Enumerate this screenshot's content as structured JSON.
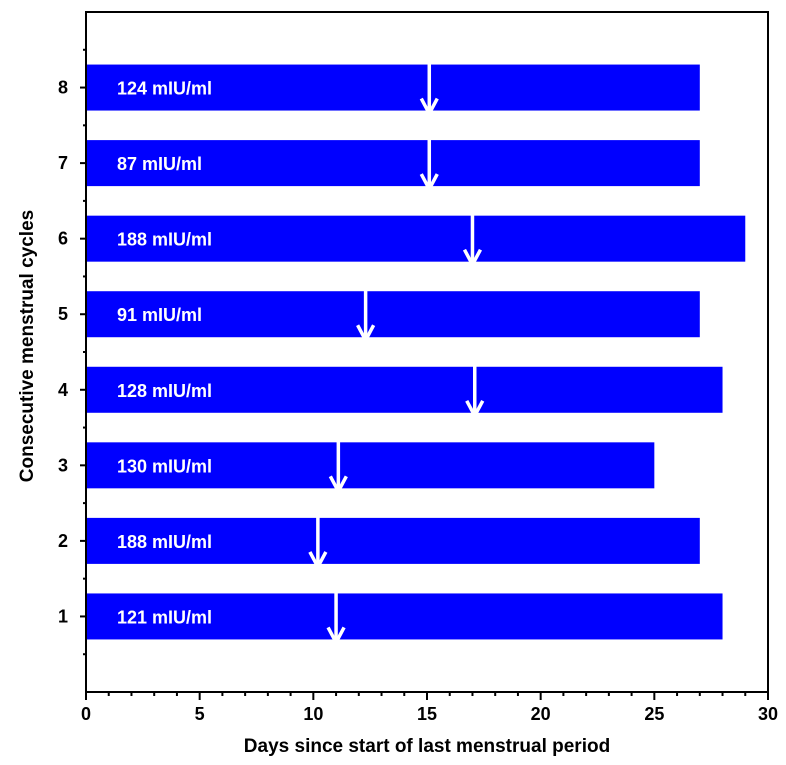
{
  "chart_data": {
    "type": "bar",
    "orientation": "horizontal",
    "xlabel": "Days since start of last menstrual period",
    "ylabel": "Consecutive menstrual cycles",
    "xlim": [
      0,
      30
    ],
    "ylim": [
      0,
      9
    ],
    "xticks": [
      0,
      5,
      10,
      15,
      20,
      25,
      30
    ],
    "yticks": [
      1,
      2,
      3,
      4,
      5,
      6,
      7,
      8
    ],
    "bar_color": "#0000FF",
    "marker_color": "#FFFFFF",
    "grid": false,
    "legend": "none",
    "series": [
      {
        "values": [
          {
            "cycle": 1,
            "length": 28,
            "marker_day": 11,
            "label": "121 mIU/ml"
          },
          {
            "cycle": 2,
            "length": 27,
            "marker_day": 10.2,
            "label": "188 mIU/ml"
          },
          {
            "cycle": 3,
            "length": 25,
            "marker_day": 11.1,
            "label": "130 mIU/ml"
          },
          {
            "cycle": 4,
            "length": 28,
            "marker_day": 17.1,
            "label": "128 mIU/ml"
          },
          {
            "cycle": 5,
            "length": 27,
            "marker_day": 12.3,
            "label": "91 mIU/ml"
          },
          {
            "cycle": 6,
            "length": 29,
            "marker_day": 17,
            "label": "188 mIU/ml"
          },
          {
            "cycle": 7,
            "length": 27,
            "marker_day": 15.1,
            "label": "87 mIU/ml"
          },
          {
            "cycle": 8,
            "length": 27,
            "marker_day": 15.1,
            "label": "124 mIU/ml"
          }
        ]
      }
    ]
  }
}
